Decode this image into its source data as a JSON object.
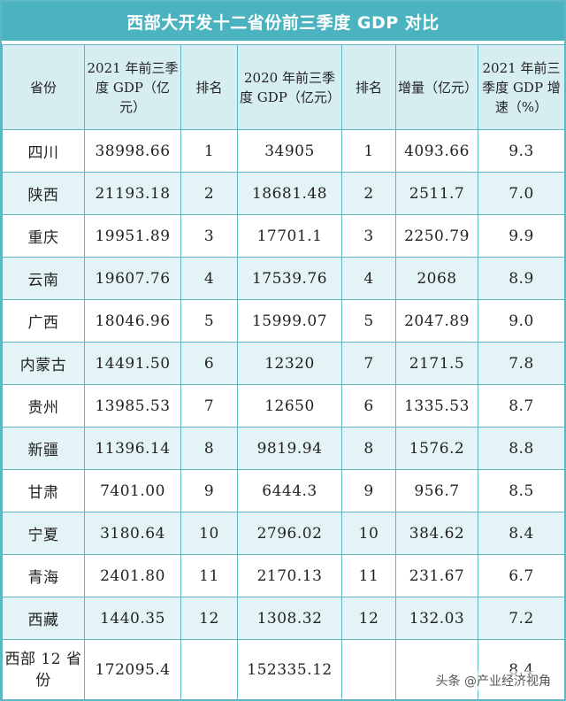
{
  "chart_data": {
    "type": "table",
    "title": "西部大开发十二省份前三季度 GDP 对比",
    "columns": [
      "省份",
      "2021 年前三季度 GDP（亿元）",
      "排名",
      "2020 年前三季度 GDP（亿元）",
      "排名",
      "增量（亿元）",
      "2021 年前三季度 GDP 增速（%）"
    ],
    "rows": [
      [
        "四川",
        "38998.66",
        "1",
        "34905",
        "1",
        "4093.66",
        "9.3"
      ],
      [
        "陕西",
        "21193.18",
        "2",
        "18681.48",
        "2",
        "2511.7",
        "7.0"
      ],
      [
        "重庆",
        "19951.89",
        "3",
        "17701.1",
        "3",
        "2250.79",
        "9.9"
      ],
      [
        "云南",
        "19607.76",
        "4",
        "17539.76",
        "4",
        "2068",
        "8.9"
      ],
      [
        "广西",
        "18046.96",
        "5",
        "15999.07",
        "5",
        "2047.89",
        "9.0"
      ],
      [
        "内蒙古",
        "14491.50",
        "6",
        "12320",
        "7",
        "2171.5",
        "7.8"
      ],
      [
        "贵州",
        "13985.53",
        "7",
        "12650",
        "6",
        "1335.53",
        "8.7"
      ],
      [
        "新疆",
        "11396.14",
        "8",
        "9819.94",
        "8",
        "1576.2",
        "8.8"
      ],
      [
        "甘肃",
        "7401.00",
        "9",
        "6444.3",
        "9",
        "956.7",
        "8.5"
      ],
      [
        "宁夏",
        "3180.64",
        "10",
        "2796.02",
        "10",
        "384.62",
        "8.4"
      ],
      [
        "青海",
        "2401.80",
        "11",
        "2170.13",
        "11",
        "231.67",
        "6.7"
      ],
      [
        "西藏",
        "1440.35",
        "12",
        "1308.32",
        "12",
        "132.03",
        "7.2"
      ],
      [
        "西部 12 省份",
        "172095.4",
        "",
        "152335.12",
        "",
        "",
        "8.4"
      ]
    ]
  },
  "watermark": "头条 @产业经济视角",
  "colors": {
    "header_band": "#4bb3c0",
    "column_header_bg": "#d6eef2",
    "stripe_bg": "#e4f3f6",
    "grid_line": "#5bb8c4"
  }
}
